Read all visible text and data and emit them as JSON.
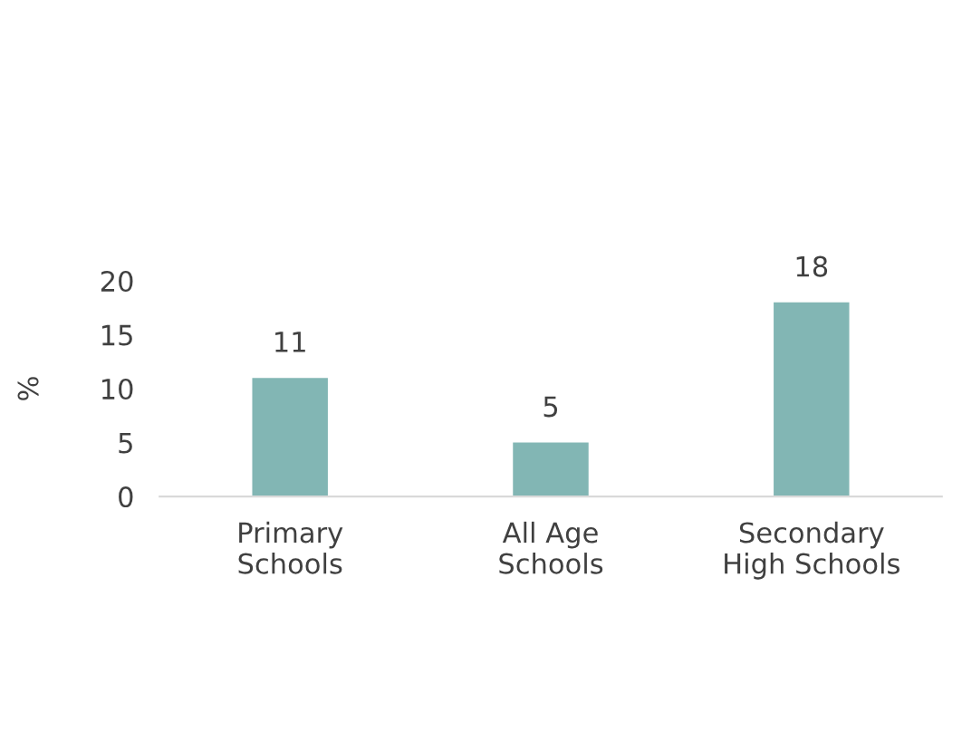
{
  "chart_data": {
    "type": "bar",
    "ylabel": "%",
    "categories": [
      "Primary\nSchools",
      "All Age\nSchools",
      "Secondary\nHigh Schools"
    ],
    "values": [
      11,
      5,
      18
    ],
    "color": "#82b6b4",
    "ylim": [
      0,
      20
    ],
    "yticks": [
      0,
      5,
      10,
      15,
      20
    ],
    "grid": false,
    "data_labels": true
  }
}
